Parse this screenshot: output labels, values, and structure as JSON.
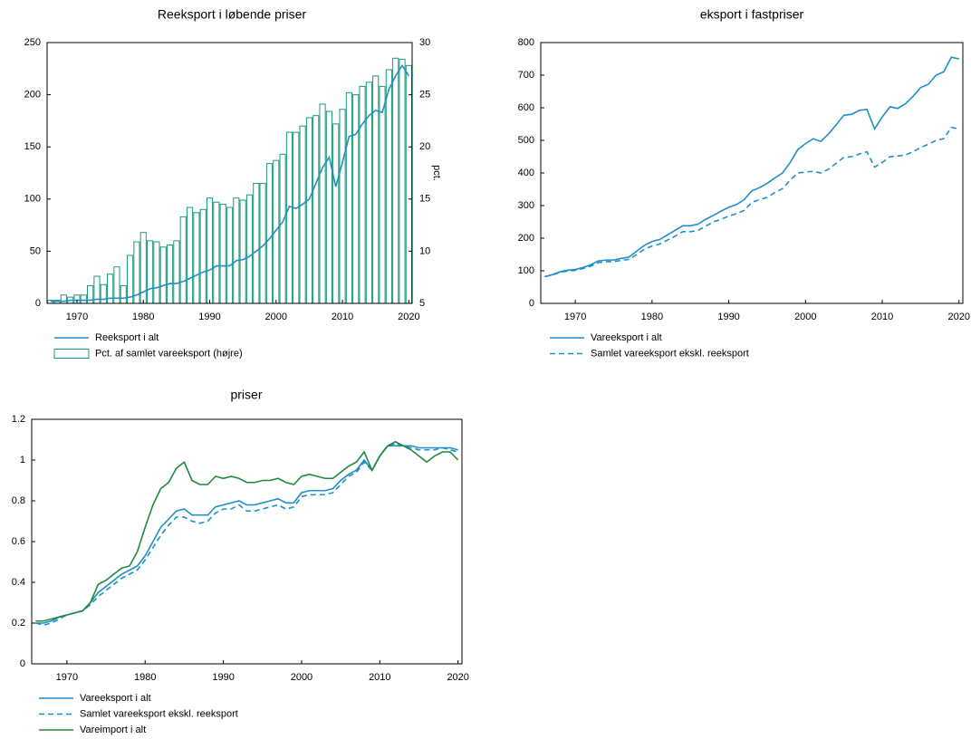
{
  "chart_data": [
    {
      "type": "combo",
      "title": "Reeksport i løbende priser",
      "y2label": "pct.",
      "x": [
        1966,
        1967,
        1968,
        1969,
        1970,
        1971,
        1972,
        1973,
        1974,
        1975,
        1976,
        1977,
        1978,
        1979,
        1980,
        1981,
        1982,
        1983,
        1984,
        1985,
        1986,
        1987,
        1988,
        1989,
        1990,
        1991,
        1992,
        1993,
        1994,
        1995,
        1996,
        1997,
        1998,
        1999,
        2000,
        2001,
        2002,
        2003,
        2004,
        2005,
        2006,
        2007,
        2008,
        2009,
        2010,
        2011,
        2012,
        2013,
        2014,
        2015,
        2016,
        2017,
        2018,
        2019,
        2020
      ],
      "xlim": [
        1965.5,
        2020.5
      ],
      "xticks": [
        1970,
        1980,
        1990,
        2000,
        2010,
        2020
      ],
      "ylim": [
        0,
        250
      ],
      "yticks": [
        0,
        50,
        100,
        150,
        200,
        250
      ],
      "y2lim": [
        5,
        30
      ],
      "y2ticks": [
        5,
        10,
        15,
        20,
        25,
        30
      ],
      "series": [
        {
          "name": "Reeksport i alt",
          "type": "line",
          "color": "#1f8fc8",
          "values": [
            2,
            2,
            2,
            3,
            3,
            3,
            3,
            4,
            4,
            5,
            5,
            5,
            6,
            8,
            11,
            14,
            15,
            17,
            19,
            19,
            21,
            24,
            27,
            30,
            32,
            36,
            36,
            36,
            41,
            42,
            45,
            50,
            55,
            62,
            70,
            78,
            93,
            91,
            95,
            100,
            115,
            130,
            140,
            112,
            135,
            160,
            162,
            172,
            180,
            185,
            183,
            205,
            218,
            228,
            218
          ]
        },
        {
          "name": "Pct. af samlet vareeksport (højre)",
          "type": "bar",
          "axis": "y2",
          "color": "#1a9a7a",
          "values": [
            5.3,
            5.3,
            5.8,
            5.6,
            5.8,
            5.8,
            6.7,
            7.6,
            6.8,
            7.8,
            8.5,
            6.7,
            9.6,
            10.9,
            11.8,
            11.0,
            10.9,
            10.4,
            10.6,
            11.0,
            13.3,
            14.2,
            13.7,
            14.0,
            15.1,
            14.7,
            14.5,
            14.2,
            15.1,
            14.9,
            15.4,
            16.5,
            16.5,
            18.4,
            18.7,
            19.3,
            21.4,
            21.4,
            22.0,
            22.8,
            23.0,
            24.1,
            23.4,
            22.2,
            23.6,
            25.2,
            25.0,
            25.8,
            26.2,
            26.8,
            25.8,
            27.4,
            28.5,
            28.4,
            27.8
          ]
        }
      ]
    },
    {
      "type": "line",
      "title": "eksport i fastpriser",
      "x": [
        1966,
        1967,
        1968,
        1969,
        1970,
        1971,
        1972,
        1973,
        1974,
        1975,
        1976,
        1977,
        1978,
        1979,
        1980,
        1981,
        1982,
        1983,
        1984,
        1985,
        1986,
        1987,
        1988,
        1989,
        1990,
        1991,
        1992,
        1993,
        1994,
        1995,
        1996,
        1997,
        1998,
        1999,
        2000,
        2001,
        2002,
        2003,
        2004,
        2005,
        2006,
        2007,
        2008,
        2009,
        2010,
        2011,
        2012,
        2013,
        2014,
        2015,
        2016,
        2017,
        2018,
        2019,
        2020
      ],
      "xlim": [
        1965.5,
        2020.5
      ],
      "xticks": [
        1970,
        1980,
        1990,
        2000,
        2010,
        2020
      ],
      "ylim": [
        0,
        800
      ],
      "yticks": [
        0,
        100,
        200,
        300,
        400,
        500,
        600,
        700,
        800
      ],
      "series": [
        {
          "name": "Vareeksport i alt",
          "type": "line",
          "color": "#1f8fc8",
          "values": [
            82,
            88,
            97,
            102,
            104,
            110,
            118,
            130,
            133,
            133,
            138,
            142,
            160,
            178,
            190,
            196,
            210,
            224,
            238,
            238,
            243,
            258,
            270,
            283,
            295,
            303,
            318,
            345,
            355,
            368,
            385,
            400,
            432,
            472,
            490,
            505,
            497,
            520,
            548,
            577,
            580,
            592,
            595,
            535,
            572,
            603,
            598,
            612,
            635,
            662,
            672,
            700,
            710,
            755,
            750
          ]
        },
        {
          "name": "Samlet vareeksport ekskl. reeksport",
          "type": "line",
          "dash": true,
          "color": "#1f8fc8",
          "values": [
            82,
            87,
            95,
            99,
            101,
            107,
            114,
            125,
            128,
            128,
            132,
            135,
            150,
            166,
            176,
            182,
            194,
            206,
            220,
            220,
            224,
            237,
            250,
            258,
            268,
            275,
            285,
            310,
            318,
            325,
            340,
            352,
            378,
            400,
            403,
            405,
            400,
            412,
            430,
            448,
            450,
            458,
            465,
            418,
            432,
            450,
            452,
            455,
            465,
            478,
            488,
            500,
            505,
            540,
            535
          ]
        }
      ]
    },
    {
      "type": "line",
      "title": "priser",
      "x": [
        1966,
        1967,
        1968,
        1969,
        1970,
        1971,
        1972,
        1973,
        1974,
        1975,
        1976,
        1977,
        1978,
        1979,
        1980,
        1981,
        1982,
        1983,
        1984,
        1985,
        1986,
        1987,
        1988,
        1989,
        1990,
        1991,
        1992,
        1993,
        1994,
        1995,
        1996,
        1997,
        1998,
        1999,
        2000,
        2001,
        2002,
        2003,
        2004,
        2005,
        2006,
        2007,
        2008,
        2009,
        2010,
        2011,
        2012,
        2013,
        2014,
        2015,
        2016,
        2017,
        2018,
        2019,
        2020
      ],
      "xlim": [
        1965.5,
        2020.5
      ],
      "xticks": [
        1970,
        1980,
        1990,
        2000,
        2010,
        2020
      ],
      "ylim": [
        0,
        1.2
      ],
      "yticks": [
        0,
        0.2,
        0.4,
        0.6,
        0.8,
        1,
        1.2
      ],
      "series": [
        {
          "name": "Vareeksport i alt",
          "type": "line",
          "color": "#1f8fc8",
          "values": [
            0.2,
            0.2,
            0.21,
            0.23,
            0.24,
            0.25,
            0.26,
            0.3,
            0.35,
            0.38,
            0.41,
            0.44,
            0.46,
            0.48,
            0.53,
            0.6,
            0.67,
            0.71,
            0.75,
            0.76,
            0.73,
            0.73,
            0.73,
            0.77,
            0.78,
            0.79,
            0.8,
            0.78,
            0.78,
            0.79,
            0.8,
            0.81,
            0.79,
            0.79,
            0.84,
            0.85,
            0.85,
            0.85,
            0.86,
            0.9,
            0.93,
            0.95,
            1.0,
            0.95,
            1.02,
            1.07,
            1.07,
            1.07,
            1.07,
            1.06,
            1.06,
            1.06,
            1.06,
            1.06,
            1.05
          ]
        },
        {
          "name": "Samlet vareeksport ekskl. reeksport",
          "type": "line",
          "dash": true,
          "color": "#1f8fc8",
          "values": [
            0.2,
            0.19,
            0.2,
            0.22,
            0.24,
            0.25,
            0.26,
            0.29,
            0.33,
            0.36,
            0.39,
            0.42,
            0.44,
            0.46,
            0.51,
            0.57,
            0.63,
            0.68,
            0.72,
            0.72,
            0.7,
            0.69,
            0.7,
            0.74,
            0.76,
            0.76,
            0.78,
            0.75,
            0.75,
            0.76,
            0.77,
            0.78,
            0.76,
            0.77,
            0.82,
            0.83,
            0.83,
            0.83,
            0.84,
            0.88,
            0.92,
            0.94,
            0.99,
            0.95,
            1.02,
            1.07,
            1.08,
            1.07,
            1.06,
            1.05,
            1.05,
            1.05,
            1.06,
            1.05,
            1.04
          ]
        },
        {
          "name": "Vareimport i alt",
          "type": "line",
          "color": "#1e8a3a",
          "values": [
            0.21,
            0.21,
            0.22,
            0.23,
            0.24,
            0.25,
            0.26,
            0.3,
            0.39,
            0.41,
            0.44,
            0.47,
            0.48,
            0.55,
            0.67,
            0.78,
            0.86,
            0.89,
            0.96,
            0.99,
            0.9,
            0.88,
            0.88,
            0.92,
            0.91,
            0.92,
            0.91,
            0.89,
            0.89,
            0.9,
            0.9,
            0.91,
            0.89,
            0.88,
            0.92,
            0.93,
            0.92,
            0.91,
            0.91,
            0.94,
            0.97,
            0.99,
            1.04,
            0.95,
            1.02,
            1.07,
            1.09,
            1.07,
            1.05,
            1.02,
            0.99,
            1.02,
            1.04,
            1.04,
            1.0
          ]
        }
      ]
    }
  ]
}
